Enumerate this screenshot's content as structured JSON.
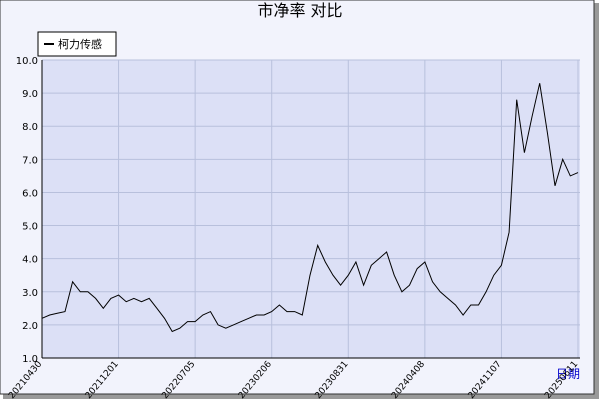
{
  "chart_data": {
    "type": "line",
    "title": "市净率 对比",
    "x_label": "日期",
    "categories": [
      "20210430",
      null,
      null,
      null,
      null,
      null,
      null,
      null,
      null,
      null,
      "20211201",
      null,
      null,
      null,
      null,
      null,
      null,
      null,
      null,
      null,
      "20220705",
      null,
      null,
      null,
      null,
      null,
      null,
      null,
      null,
      null,
      "20230206",
      null,
      null,
      null,
      null,
      null,
      null,
      null,
      null,
      null,
      "20230831",
      null,
      null,
      null,
      null,
      null,
      null,
      null,
      null,
      null,
      "20240408",
      null,
      null,
      null,
      null,
      null,
      null,
      null,
      null,
      null,
      "20241107",
      null,
      null,
      null,
      null,
      null,
      null,
      null,
      null,
      null,
      "20250611"
    ],
    "series": [
      {
        "name": "柯力传感",
        "color": "#000000",
        "values": [
          2.2,
          2.3,
          2.35,
          2.4,
          3.3,
          3.0,
          3.0,
          2.8,
          2.5,
          2.8,
          2.9,
          2.7,
          2.8,
          2.7,
          2.8,
          2.5,
          2.2,
          1.8,
          1.9,
          2.1,
          2.1,
          2.3,
          2.4,
          2.0,
          1.9,
          2.0,
          2.1,
          2.2,
          2.3,
          2.3,
          2.4,
          2.6,
          2.4,
          2.4,
          2.3,
          3.5,
          4.4,
          3.9,
          3.5,
          3.2,
          3.5,
          3.9,
          3.2,
          3.8,
          4.0,
          4.2,
          3.5,
          3.0,
          3.2,
          3.7,
          3.9,
          3.3,
          3.0,
          2.8,
          2.6,
          2.3,
          2.6,
          2.6,
          3.0,
          3.5,
          3.8,
          4.8,
          8.8,
          7.2,
          8.3,
          9.3,
          7.8,
          6.2,
          7.0,
          6.5,
          6.6
        ]
      }
    ],
    "ylim": [
      1,
      10
    ],
    "yticks": [
      {
        "value": 1,
        "label": "1.0"
      },
      {
        "value": 2,
        "label": "2.0"
      },
      {
        "value": 3,
        "label": "3.0"
      },
      {
        "value": 4,
        "label": "4.0"
      },
      {
        "value": 5,
        "label": "5.0"
      },
      {
        "value": 6,
        "label": "6.0"
      },
      {
        "value": 7,
        "label": "7.0"
      },
      {
        "value": 8,
        "label": "8.0"
      },
      {
        "value": 9,
        "label": "9.0"
      },
      {
        "value": 10,
        "label": "10.0"
      }
    ],
    "grid": true,
    "legend": "top-left"
  }
}
